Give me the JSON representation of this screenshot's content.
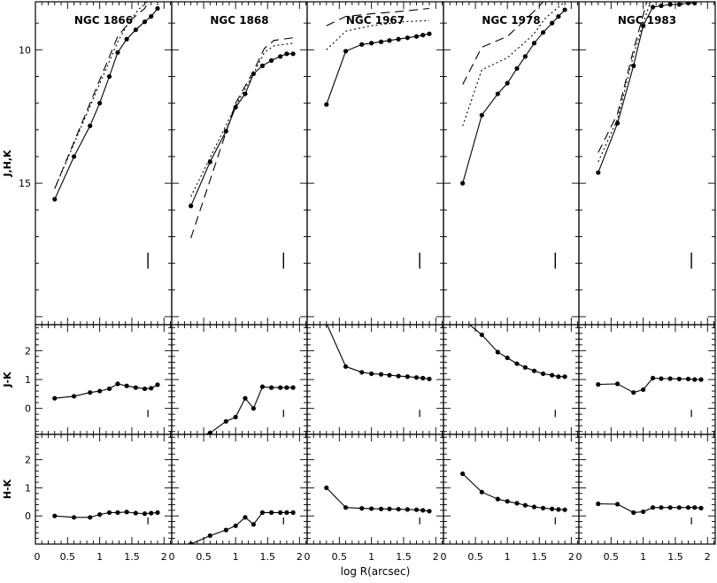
{
  "chart_data": {
    "type": "line",
    "columns": [
      "NGC 1866",
      "NGC 1868",
      "NGC 1967",
      "NGC 1978",
      "NGC 1983"
    ],
    "x_axis": {
      "label": "log R(arcsec)",
      "range": [
        0,
        2.12
      ],
      "ticks": [
        "0",
        "0.5",
        "1",
        "1.5",
        "2"
      ]
    },
    "rows": [
      {
        "id": "mag",
        "ylabel": "J,H,K",
        "range": [
          8.2,
          20.3
        ],
        "inverted": true,
        "ticks": [
          "10",
          "15"
        ],
        "tick_values": [
          10,
          15
        ],
        "series_styles": [
          {
            "name": "J",
            "dash": "",
            "markers": true
          },
          {
            "name": "H",
            "dash": "2,3",
            "markers": false
          },
          {
            "name": "K",
            "dash": "10,6",
            "markers": false
          }
        ]
      },
      {
        "id": "jk",
        "ylabel": "J-K",
        "range": [
          -0.9,
          2.9
        ],
        "inverted": false,
        "ticks": [
          "2",
          "1",
          "0"
        ],
        "tick_values": [
          2,
          1,
          0
        ]
      },
      {
        "id": "hk",
        "ylabel": "H-K",
        "range": [
          -1.0,
          2.9
        ],
        "inverted": false,
        "ticks": [
          "2",
          "1",
          "0"
        ],
        "tick_values": [
          2,
          1,
          0
        ]
      }
    ],
    "panels": [
      {
        "name": "NGC 1866",
        "marker_x": 1.75,
        "J": {
          "x": [
            0.3,
            0.6,
            0.85,
            1.0,
            1.15,
            1.28,
            1.42,
            1.56,
            1.7,
            1.8,
            1.9
          ],
          "y": [
            15.6,
            14.0,
            12.85,
            12.0,
            11.0,
            10.1,
            9.6,
            9.25,
            8.95,
            8.75,
            8.45
          ]
        },
        "H": {
          "x": [
            0.3,
            1.28,
            1.42,
            1.6,
            1.9
          ],
          "y": [
            15.2,
            9.7,
            9.1,
            8.5,
            7.85
          ]
        },
        "K": {
          "x": [
            0.3,
            1.28,
            1.5,
            1.7,
            1.9
          ],
          "y": [
            15.2,
            9.5,
            8.85,
            8.45,
            7.6
          ]
        },
        "JK": {
          "x": [
            0.3,
            0.6,
            0.85,
            1.0,
            1.15,
            1.28,
            1.42,
            1.56,
            1.7,
            1.8,
            1.9
          ],
          "y": [
            0.35,
            0.42,
            0.55,
            0.6,
            0.68,
            0.85,
            0.78,
            0.72,
            0.68,
            0.7,
            0.82
          ]
        },
        "HK": {
          "x": [
            0.3,
            0.6,
            0.85,
            1.0,
            1.15,
            1.28,
            1.42,
            1.56,
            1.7,
            1.8,
            1.9
          ],
          "y": [
            0.0,
            -0.05,
            -0.05,
            0.05,
            0.12,
            0.12,
            0.14,
            0.1,
            0.08,
            0.1,
            0.12
          ]
        }
      },
      {
        "name": "NGC 1868",
        "marker_x": 1.75,
        "J": {
          "x": [
            0.3,
            0.6,
            0.85,
            1.0,
            1.15,
            1.28,
            1.42,
            1.56,
            1.7,
            1.8,
            1.9
          ],
          "y": [
            15.85,
            14.2,
            13.05,
            12.15,
            11.65,
            10.9,
            10.6,
            10.4,
            10.25,
            10.15,
            10.15
          ]
        },
        "H": {
          "x": [
            0.3,
            1.0,
            1.28,
            1.45,
            1.6,
            1.9
          ],
          "y": [
            15.5,
            12.1,
            10.9,
            10.1,
            9.85,
            9.75
          ]
        },
        "K": {
          "x": [
            0.3,
            1.0,
            1.28,
            1.45,
            1.6,
            1.9
          ],
          "y": [
            17.05,
            12.0,
            10.8,
            9.95,
            9.65,
            9.55
          ]
        },
        "JK": {
          "x": [
            0.3,
            0.6,
            0.85,
            1.0,
            1.15,
            1.28,
            1.42,
            1.56,
            1.7,
            1.8,
            1.9
          ],
          "y": [
            -1.05,
            -0.85,
            -0.45,
            -0.3,
            0.35,
            0.0,
            0.75,
            0.72,
            0.72,
            0.72,
            0.72
          ]
        },
        "HK": {
          "x": [
            0.3,
            0.6,
            0.85,
            1.0,
            1.15,
            1.28,
            1.42,
            1.56,
            1.7,
            1.8,
            1.9
          ],
          "y": [
            -1.0,
            -0.7,
            -0.5,
            -0.35,
            -0.05,
            -0.3,
            0.12,
            0.12,
            0.12,
            0.12,
            0.12
          ]
        }
      },
      {
        "name": "NGC 1967",
        "marker_x": 1.75,
        "J": {
          "x": [
            0.3,
            0.6,
            0.85,
            1.0,
            1.15,
            1.28,
            1.42,
            1.56,
            1.7,
            1.8,
            1.9
          ],
          "y": [
            12.05,
            10.05,
            9.8,
            9.75,
            9.7,
            9.65,
            9.6,
            9.55,
            9.5,
            9.45,
            9.4
          ]
        },
        "H": {
          "x": [
            0.3,
            0.6,
            1.0,
            1.5,
            1.9
          ],
          "y": [
            10.0,
            9.3,
            9.1,
            8.95,
            8.9
          ]
        },
        "K": {
          "x": [
            0.3,
            0.6,
            1.0,
            1.5,
            1.9
          ],
          "y": [
            9.1,
            8.75,
            8.65,
            8.55,
            8.45
          ]
        },
        "JK": {
          "x": [
            0.3,
            0.6,
            0.85,
            1.0,
            1.15,
            1.28,
            1.42,
            1.56,
            1.7,
            1.8,
            1.9
          ],
          "y": [
            2.95,
            1.45,
            1.25,
            1.2,
            1.18,
            1.15,
            1.12,
            1.1,
            1.07,
            1.05,
            1.02
          ]
        },
        "HK": {
          "x": [
            0.3,
            0.6,
            0.85,
            1.0,
            1.15,
            1.28,
            1.42,
            1.56,
            1.7,
            1.8,
            1.9
          ],
          "y": [
            1.0,
            0.3,
            0.27,
            0.26,
            0.25,
            0.25,
            0.24,
            0.23,
            0.22,
            0.2,
            0.17
          ]
        }
      },
      {
        "name": "NGC 1978",
        "marker_x": 1.75,
        "J": {
          "x": [
            0.3,
            0.6,
            0.85,
            1.0,
            1.15,
            1.28,
            1.42,
            1.56,
            1.7,
            1.8,
            1.9
          ],
          "y": [
            15.0,
            12.45,
            11.65,
            11.25,
            10.7,
            10.25,
            9.75,
            9.35,
            9.0,
            8.75,
            8.5
          ]
        },
        "H": {
          "x": [
            0.3,
            0.6,
            1.0,
            1.4,
            1.6,
            1.9
          ],
          "y": [
            12.85,
            10.75,
            10.3,
            9.45,
            8.8,
            8.2
          ]
        },
        "K": {
          "x": [
            0.3,
            0.6,
            1.0,
            1.4,
            1.6,
            1.9
          ],
          "y": [
            11.3,
            9.9,
            9.5,
            8.6,
            8.1,
            7.7
          ]
        },
        "JK": {
          "x": [
            0.3,
            0.6,
            0.85,
            1.0,
            1.15,
            1.28,
            1.42,
            1.56,
            1.7,
            1.8,
            1.9
          ],
          "y": [
            3.1,
            2.55,
            1.95,
            1.75,
            1.55,
            1.42,
            1.3,
            1.2,
            1.15,
            1.1,
            1.1
          ]
        },
        "HK": {
          "x": [
            0.3,
            0.6,
            0.85,
            1.0,
            1.15,
            1.28,
            1.42,
            1.56,
            1.7,
            1.8,
            1.9
          ],
          "y": [
            1.5,
            0.85,
            0.6,
            0.52,
            0.45,
            0.38,
            0.32,
            0.28,
            0.25,
            0.23,
            0.22
          ]
        }
      },
      {
        "name": "NGC 1983",
        "marker_x": 1.75,
        "J": {
          "x": [
            0.3,
            0.6,
            0.85,
            1.0,
            1.15,
            1.28,
            1.42,
            1.56,
            1.7,
            1.8,
            1.9
          ],
          "y": [
            14.6,
            12.75,
            10.6,
            9.1,
            8.4,
            8.35,
            8.3,
            8.3,
            8.25,
            8.25,
            8.1
          ]
        },
        "H": {
          "x": [
            0.3,
            0.6,
            0.85,
            1.0,
            1.15,
            1.3,
            1.6,
            1.9
          ],
          "y": [
            14.2,
            12.6,
            10.2,
            9.0,
            7.95,
            7.7,
            7.6,
            7.5
          ]
        },
        "K": {
          "x": [
            0.3,
            0.6,
            0.85,
            1.0,
            1.15,
            1.3,
            1.6,
            1.9
          ],
          "y": [
            13.85,
            12.4,
            10.0,
            8.7,
            7.35,
            7.3,
            7.25,
            7.05
          ]
        },
        "JK": {
          "x": [
            0.3,
            0.6,
            0.85,
            1.0,
            1.15,
            1.28,
            1.42,
            1.56,
            1.7,
            1.8,
            1.9
          ],
          "y": [
            0.83,
            0.85,
            0.55,
            0.65,
            1.05,
            1.03,
            1.03,
            1.02,
            1.02,
            1.0,
            1.0
          ]
        },
        "HK": {
          "x": [
            0.3,
            0.6,
            0.85,
            1.0,
            1.15,
            1.28,
            1.42,
            1.56,
            1.7,
            1.8,
            1.9
          ],
          "y": [
            0.43,
            0.42,
            0.12,
            0.15,
            0.3,
            0.3,
            0.3,
            0.3,
            0.3,
            0.3,
            0.28
          ]
        }
      }
    ]
  }
}
